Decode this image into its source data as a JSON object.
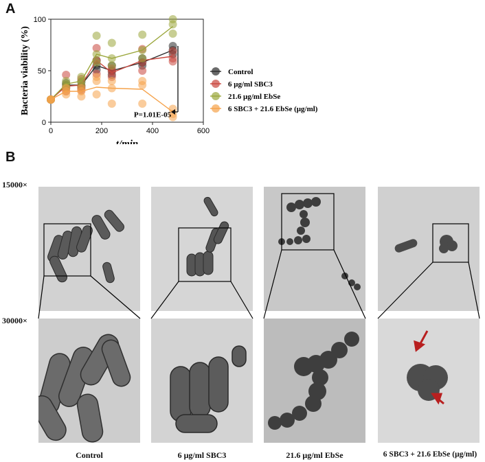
{
  "panels": {
    "a_label": "A",
    "b_label": "B"
  },
  "chart_data": {
    "type": "scatter",
    "xlabel": "t/min",
    "ylabel": "Bacteria viability (%)",
    "xlim": [
      0,
      600
    ],
    "ylim": [
      0,
      100
    ],
    "xticks": [
      "0",
      "200",
      "400",
      "600"
    ],
    "yticks": [
      "0",
      "50",
      "100"
    ],
    "annotation": "P=1.01E-05",
    "legend_position": "right",
    "series": [
      {
        "name": "Control",
        "color": "#2b2b2b",
        "x": [
          0,
          60,
          120,
          180,
          240,
          360,
          480
        ],
        "mean": [
          22,
          36,
          36,
          55,
          50,
          58,
          70
        ],
        "points": [
          [
            22,
            22,
            22
          ],
          [
            33,
            36,
            38
          ],
          [
            33,
            35,
            39
          ],
          [
            51,
            55,
            60
          ],
          [
            46,
            50,
            55
          ],
          [
            55,
            58,
            62
          ],
          [
            66,
            70,
            74
          ]
        ]
      },
      {
        "name": "6 μg/ml SBC3",
        "color": "#c9463d",
        "x": [
          0,
          60,
          120,
          180,
          240,
          360,
          480
        ],
        "mean": [
          22,
          35,
          36,
          60,
          48,
          60,
          64
        ],
        "points": [
          [
            22,
            22,
            22
          ],
          [
            30,
            34,
            46
          ],
          [
            31,
            35,
            42
          ],
          [
            47,
            60,
            72
          ],
          [
            44,
            49,
            52
          ],
          [
            50,
            58,
            71
          ],
          [
            59,
            62,
            69
          ]
        ]
      },
      {
        "name": "21.6 μg/ml EbSe",
        "color": "#9aa63a",
        "x": [
          0,
          60,
          120,
          180,
          240,
          360,
          480
        ],
        "mean": [
          22,
          37,
          40,
          66,
          62,
          70,
          93
        ],
        "points": [
          [
            22,
            22,
            22
          ],
          [
            34,
            37,
            40
          ],
          [
            36,
            40,
            44
          ],
          [
            58,
            66,
            84
          ],
          [
            55,
            62,
            77
          ],
          [
            62,
            70,
            85
          ],
          [
            86,
            95,
            100
          ]
        ]
      },
      {
        "name": "6 SBC3 + 21.6 EbSe (μg/ml)",
        "color": "#f5a24a",
        "x": [
          0,
          60,
          120,
          180,
          240,
          360,
          480
        ],
        "mean": [
          22,
          30,
          30,
          34,
          33,
          32,
          10
        ],
        "points": [
          [
            22,
            22,
            22
          ],
          [
            27,
            30,
            33
          ],
          [
            25,
            30,
            33
          ],
          [
            27,
            40,
            44
          ],
          [
            18,
            33,
            40
          ],
          [
            18,
            36,
            40
          ],
          [
            5,
            8,
            13
          ]
        ]
      }
    ]
  },
  "micrographs": {
    "mag_top": "15000×",
    "mag_bottom": "30000×",
    "captions": [
      "Control",
      "6 μg/ml SBC3",
      "21.6 μg/ml EbSe",
      "6 SBC3 + 21.6 EbSe (μg/ml)"
    ]
  }
}
